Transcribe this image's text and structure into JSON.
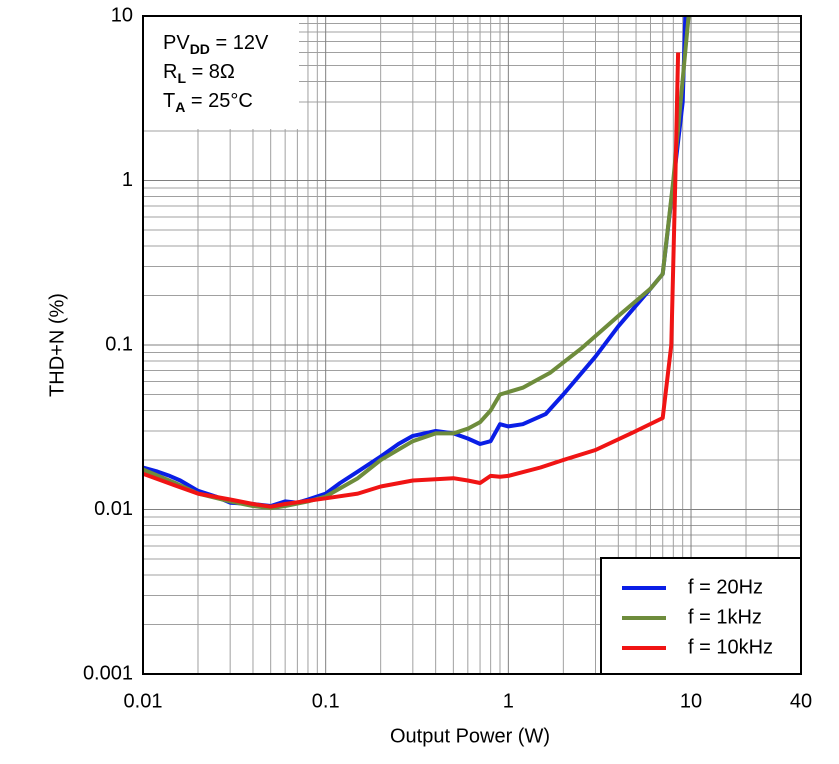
{
  "chart_data": {
    "type": "line",
    "xlabel": "Output Power (W)",
    "ylabel": "THD+N (%)",
    "xscale": "log",
    "yscale": "log",
    "grid": true,
    "minor_grid": true,
    "legend": "lower right",
    "xlim": [
      0.01,
      40
    ],
    "xticks": [
      0.01,
      0.1,
      1,
      10,
      40
    ],
    "ylim": [
      0.001,
      10
    ],
    "yticks": [
      0.001,
      0.01,
      0.1,
      1,
      10
    ],
    "annotations": [
      {
        "text": "PV",
        "sub": "DD",
        "rest": " = 12V"
      },
      {
        "text": "R",
        "sub": "L",
        "rest": " = 8Ω"
      },
      {
        "text": "T",
        "sub": "A",
        "rest": " = 25°C"
      }
    ],
    "series": [
      {
        "name": "f = 20Hz",
        "color": "#0a1ee6",
        "x": [
          0.01,
          0.012,
          0.014,
          0.016,
          0.02,
          0.025,
          0.03,
          0.04,
          0.05,
          0.06,
          0.07,
          0.08,
          0.1,
          0.12,
          0.15,
          0.2,
          0.25,
          0.3,
          0.4,
          0.5,
          0.6,
          0.7,
          0.8,
          0.9,
          1.0,
          1.2,
          1.6,
          2,
          3,
          4,
          6,
          7,
          9,
          9.3
        ],
        "values": [
          0.018,
          0.017,
          0.016,
          0.015,
          0.013,
          0.012,
          0.011,
          0.0108,
          0.0105,
          0.0112,
          0.011,
          0.0115,
          0.0125,
          0.0145,
          0.017,
          0.021,
          0.025,
          0.028,
          0.03,
          0.029,
          0.027,
          0.025,
          0.026,
          0.033,
          0.032,
          0.033,
          0.038,
          0.05,
          0.085,
          0.13,
          0.22,
          0.27,
          3,
          10
        ]
      },
      {
        "name": "f = 1kHz",
        "color": "#6e8c3c",
        "x": [
          0.01,
          0.015,
          0.02,
          0.03,
          0.04,
          0.05,
          0.06,
          0.08,
          0.1,
          0.15,
          0.2,
          0.3,
          0.4,
          0.5,
          0.6,
          0.7,
          0.8,
          0.9,
          1.2,
          1.7,
          2.5,
          4,
          6,
          7,
          8,
          9.7
        ],
        "values": [
          0.0175,
          0.0145,
          0.0125,
          0.0112,
          0.0105,
          0.0102,
          0.0105,
          0.0112,
          0.012,
          0.0155,
          0.02,
          0.026,
          0.029,
          0.029,
          0.031,
          0.034,
          0.04,
          0.05,
          0.055,
          0.068,
          0.095,
          0.15,
          0.22,
          0.27,
          1,
          10
        ]
      },
      {
        "name": "f = 10kHz",
        "color": "#f01414",
        "x": [
          0.01,
          0.015,
          0.02,
          0.03,
          0.04,
          0.05,
          0.06,
          0.08,
          0.1,
          0.15,
          0.2,
          0.3,
          0.5,
          0.6,
          0.7,
          0.8,
          0.9,
          1,
          1.5,
          2,
          3,
          5,
          7,
          7.8,
          8.2,
          8.5
        ],
        "values": [
          0.0165,
          0.014,
          0.0125,
          0.0115,
          0.0108,
          0.0104,
          0.0108,
          0.0113,
          0.0117,
          0.0125,
          0.0138,
          0.015,
          0.0155,
          0.015,
          0.0145,
          0.016,
          0.0158,
          0.016,
          0.018,
          0.02,
          0.023,
          0.03,
          0.036,
          0.1,
          1,
          6
        ]
      }
    ]
  }
}
